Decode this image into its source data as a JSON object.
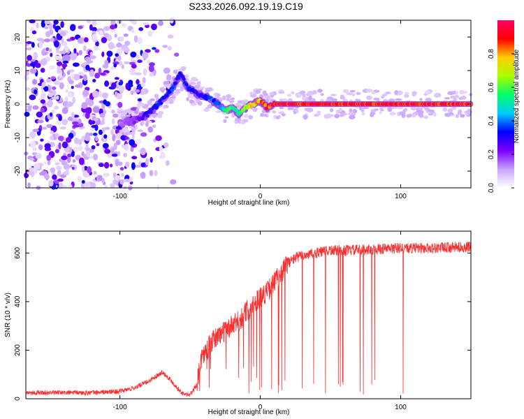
{
  "title": "S233.2026.092.19.19.C19",
  "colors": {
    "snr_line": "#ff2a2a",
    "axis": "#000000",
    "background": "#ffffff"
  },
  "chart_data": [
    {
      "type": "heatmap",
      "name": "spectrogram",
      "xlabel": "Height of straight line (km)",
      "ylabel": "Frequency (Hz)",
      "xlim": [
        -167,
        150
      ],
      "ylim": [
        -25,
        25
      ],
      "xticks": [
        -100,
        0,
        100
      ],
      "yticks": [
        -20,
        -10,
        0,
        10,
        20
      ],
      "colorbar": {
        "label": "Normalized spectral amplitude",
        "range": [
          0,
          1
        ],
        "ticks": [
          0.0,
          0.2,
          0.4,
          0.6,
          0.8
        ],
        "tick_labels": [
          "0.0",
          "0.2",
          "0.4",
          "0.6",
          "0.8"
        ],
        "colormap": [
          "#ffffff",
          "#c9a2ff",
          "#7a00ff",
          "#0000ff",
          "#00ccff",
          "#00ff66",
          "#aaff00",
          "#ffcc00",
          "#ff0000",
          "#ff0066"
        ]
      },
      "ridge_frequency": {
        "height_km": [
          -100,
          -90,
          -80,
          -70,
          -62,
          -57,
          -52,
          -45,
          -38,
          -30,
          -25,
          -20,
          -15,
          -10,
          -5,
          0,
          5,
          10,
          20,
          40,
          60,
          80,
          100,
          120,
          150
        ],
        "freq_hz": [
          -6,
          -5,
          -3,
          1,
          5,
          9,
          5,
          3,
          2,
          0,
          -2,
          -1,
          -3,
          -1,
          0,
          1,
          -1,
          0,
          0,
          0,
          0,
          0,
          0,
          0,
          0
        ],
        "amplitude": [
          0.15,
          0.2,
          0.3,
          0.35,
          0.35,
          0.3,
          0.35,
          0.3,
          0.35,
          0.4,
          0.5,
          0.6,
          0.55,
          0.65,
          0.75,
          0.85,
          0.9,
          0.95,
          0.95,
          0.95,
          0.95,
          0.95,
          0.95,
          0.95,
          0.95
        ]
      },
      "noise_region_km": [
        -167,
        -55
      ]
    },
    {
      "type": "line",
      "name": "snr",
      "xlabel": "Height of straight line (km)",
      "ylabel": "SNR (10 * v/v)",
      "xlim": [
        -167,
        150
      ],
      "ylim": [
        0,
        690
      ],
      "xticks": [
        -100,
        0,
        100
      ],
      "yticks": [
        0,
        200,
        400,
        600
      ],
      "series": [
        {
          "name": "SNR",
          "color": "#ff2a2a",
          "envelope_x_km": [
            -167,
            -120,
            -100,
            -90,
            -80,
            -75,
            -70,
            -65,
            -60,
            -55,
            -50,
            -45,
            -42,
            -38,
            -35,
            -30,
            -25,
            -20,
            -15,
            -10,
            -5,
            0,
            5,
            10,
            15,
            20,
            25,
            30,
            40,
            50,
            60,
            80,
            100,
            120,
            150
          ],
          "envelope_y": [
            25,
            25,
            30,
            45,
            70,
            90,
            110,
            85,
            50,
            20,
            15,
            60,
            170,
            200,
            230,
            260,
            280,
            300,
            320,
            360,
            390,
            420,
            440,
            480,
            520,
            560,
            580,
            590,
            600,
            610,
            610,
            615,
            620,
            620,
            625
          ]
        }
      ]
    }
  ]
}
